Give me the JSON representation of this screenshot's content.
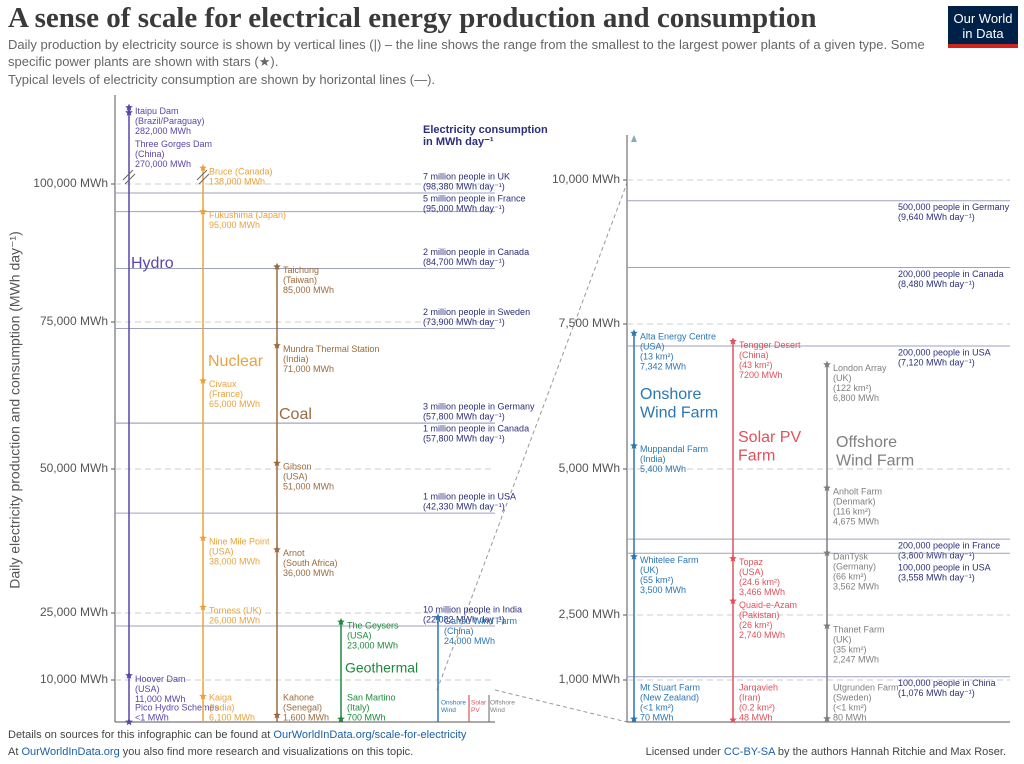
{
  "header": {
    "title": "A sense of scale for electrical energy production and consumption",
    "subtitle": [
      "Daily production by electricity source is shown by vertical lines (|) – the line shows the range from the smallest to the largest power plants of a given type. Some specific power plants are shown with stars (★).",
      "Typical levels of electricity consumption are shown by horizontal lines (—)."
    ],
    "logo": [
      "Our World",
      "in Data"
    ]
  },
  "chart_data": [
    {
      "type": "range-lines",
      "y_label": "Daily electricity production and consumption (MWh day⁻¹)",
      "ylim": [
        0,
        300000
      ],
      "yticks": [
        {
          "value": 10000,
          "label": "10,000 MWh"
        },
        {
          "value": 25000,
          "label": "25,000 MWh"
        },
        {
          "value": 50000,
          "label": "50,000 MWh"
        },
        {
          "value": 75000,
          "label": "75,000 MWh"
        },
        {
          "value": 100000,
          "label": "100,000 MWh"
        }
      ],
      "consumption_title": [
        "Electricity consumption",
        "in MWh day⁻¹"
      ],
      "consumption": [
        {
          "name": "7 million people in UK",
          "value": 98380,
          "value_label": "(98,380 MWh day⁻¹)"
        },
        {
          "name": "5 million people in France",
          "value": 95000,
          "value_label": "(95,000 MWh day⁻¹)"
        },
        {
          "name": "2 million people in Canada",
          "value": 84700,
          "value_label": "(84,700 MWh day⁻¹)"
        },
        {
          "name": "2 million people in Sweden",
          "value": 73900,
          "value_label": "(73,900 MWh day⁻¹)"
        },
        {
          "name": "3 million people in Germany",
          "value": 57800,
          "value_label": "(57,800 MWh day⁻¹)"
        },
        {
          "name": "1 million people in Canada",
          "value": 57800,
          "value_label": "(57,800 MWh day⁻¹)"
        },
        {
          "name": "1 million people in USA",
          "value": 42330,
          "value_label": "(42,330 MWh day⁻¹)"
        },
        {
          "name": "10 million people in India",
          "value": 22082,
          "value_label": "(22,082 MWh day⁻¹)"
        }
      ],
      "sources": [
        {
          "name": [
            "Hydro"
          ],
          "color": "#5b45a8",
          "plants": [
            {
              "name": "Itaipu Dam",
              "place": "(Brazil/Paraguay)",
              "value": 282000,
              "value_label": "282,000 MWh"
            },
            {
              "name": "Three Gorges Dam",
              "place": "(China)",
              "value": 270000,
              "value_label": "270,000 MWh"
            },
            {
              "name": "Hoover Dam",
              "place": "(USA)",
              "value": 11000,
              "value_label": "11,000 MWh"
            },
            {
              "name": "Pico Hydro Schemes",
              "value": 0.5,
              "value_label": "<1 MWh"
            }
          ]
        },
        {
          "name": [
            "Nuclear"
          ],
          "color": "#e8a33d",
          "plants": [
            {
              "name": "Bruce (Canada)",
              "value": 138000,
              "value_label": "138,000 MWh"
            },
            {
              "name": "Fukushima (Japan)",
              "value": 95000,
              "value_label": "95,000 MWh"
            },
            {
              "name": "Civaux",
              "place": "(France)",
              "value": 65000,
              "value_label": "65,000 MWh"
            },
            {
              "name": "Nine Mile Point",
              "place": "(USA)",
              "value": 38000,
              "value_label": "38,000 MWh"
            },
            {
              "name": "Torness (UK)",
              "value": 26000,
              "value_label": "26,000 MWh"
            },
            {
              "name": "Kaiga",
              "place": "(India)",
              "value": 6100,
              "value_label": "6,100 MWh"
            }
          ]
        },
        {
          "name": [
            "Coal"
          ],
          "color": "#9a6b3f",
          "plants": [
            {
              "name": "Taichung",
              "place": "(Taiwan)",
              "value": 85000,
              "value_label": "85,000 MWh"
            },
            {
              "name": "Mundra Thermal Station",
              "place": "(India)",
              "value": 71000,
              "value_label": "71,000 MWh"
            },
            {
              "name": "Gibson",
              "place": "(USA)",
              "value": 51000,
              "value_label": "51,000 MWh"
            },
            {
              "name": "Arnot",
              "place": "(South Africa)",
              "value": 36000,
              "value_label": "36,000 MWh"
            },
            {
              "name": "Kahone",
              "place": "(Senegal)",
              "value": 1600,
              "value_label": "1,600 MWh"
            }
          ]
        },
        {
          "name": [
            "Geothermal"
          ],
          "color": "#1e8a3c",
          "plants": [
            {
              "name": "The Geysers",
              "place": "(USA)",
              "value": 23000,
              "value_label": "23,000 MWh"
            },
            {
              "name": "San Martino",
              "place": "(Italy)",
              "value": 700,
              "value_label": "700 MWh"
            }
          ]
        },
        {
          "name": [
            "Onshore",
            "Wind"
          ],
          "color": "#2a77b5",
          "plants": [
            {
              "name": "Gansu Wind Farm",
              "place": "(China)",
              "value": 24000,
              "value_label": "24,000 MWh"
            }
          ]
        },
        {
          "name": [
            "Solar",
            "PV"
          ],
          "color": "#e0525a",
          "plants": []
        },
        {
          "name": [
            "Offshore",
            "Wind"
          ],
          "color": "#7f7f7f",
          "plants": []
        }
      ]
    },
    {
      "type": "range-lines",
      "ylim": [
        0,
        11000
      ],
      "yticks": [
        {
          "value": 1000,
          "label": "1,000 MWh"
        },
        {
          "value": 2500,
          "label": "2,500 MWh"
        },
        {
          "value": 5000,
          "label": "5,000 MWh"
        },
        {
          "value": 7500,
          "label": "7,500 MWh"
        },
        {
          "value": 10000,
          "label": "10,000 MWh"
        }
      ],
      "consumption": [
        {
          "name": "500,000 people in Germany",
          "value": 9640,
          "value_label": "(9,640 MWh day⁻¹)"
        },
        {
          "name": "200,000 people in Canada",
          "value": 8480,
          "value_label": "(8,480 MWh day⁻¹)"
        },
        {
          "name": "200,000 people in USA",
          "value": 7120,
          "value_label": "(7,120 MWh day⁻¹)"
        },
        {
          "name": "200,000 people in France",
          "value": 3800,
          "value_label": "(3,800 MWh day⁻¹)"
        },
        {
          "name": "100,000 people in USA",
          "value": 3558,
          "value_label": "(3,558 MWh day⁻¹)"
        },
        {
          "name": "100,000 people in China",
          "value": 1076,
          "value_label": "(1,076 MWh day⁻¹)"
        }
      ],
      "sources": [
        {
          "name": [
            "Onshore",
            "Wind Farm"
          ],
          "color": "#2a77b5",
          "plants": [
            {
              "name": "Alta Energy Centre",
              "place": "(USA)",
              "area": "(13 km²)",
              "value": 7342,
              "value_label": "7,342 MWh"
            },
            {
              "name": "Muppandal Farm",
              "place": "(India)",
              "value": 5400,
              "value_label": "5,400 MWh"
            },
            {
              "name": "Whitelee Farm",
              "place": "(UK)",
              "area": "(55 km²)",
              "value": 3500,
              "value_label": "3,500 MWh"
            },
            {
              "name": "Mt Stuart Farm",
              "place": "(New Zealand)",
              "area": "(<1 km²)",
              "value": 70,
              "value_label": "70 MWh"
            }
          ]
        },
        {
          "name": [
            "Solar PV",
            "Farm"
          ],
          "color": "#e0525a",
          "plants": [
            {
              "name": "Tengger Desert",
              "place": "(China)",
              "area": "(43 km²)",
              "value": 7200,
              "value_label": "7200 MWh"
            },
            {
              "name": "Topaz",
              "place": "(USA)",
              "area": "(24.6 km²)",
              "value": 3466,
              "value_label": "3,466 MWh"
            },
            {
              "name": "Quaid-e-Azam",
              "place": "(Pakistan)",
              "area": "(26 km²)",
              "value": 2740,
              "value_label": "2,740 MWh"
            },
            {
              "name": "Jarqavieh",
              "place": "(Iran)",
              "area": "(0.2 km²)",
              "value": 48,
              "value_label": "48 MWh"
            }
          ]
        },
        {
          "name": [
            "Offshore",
            "Wind Farm"
          ],
          "color": "#7f7f7f",
          "plants": [
            {
              "name": "London Array",
              "place": "(UK)",
              "area": "(122 km²)",
              "value": 6800,
              "value_label": "6,800 MWh"
            },
            {
              "name": "Anholt Farm",
              "place": "(Denmark)",
              "area": "(116 km²)",
              "value": 4675,
              "value_label": "4,675 MWh"
            },
            {
              "name": "DanTysk",
              "place": "(Germany)",
              "area": "(66 km²)",
              "value": 3562,
              "value_label": "3,562 MWh"
            },
            {
              "name": "Thanet Farm",
              "place": "(UK)",
              "area": "(35 km²)",
              "value": 2247,
              "value_label": "2,247 MWh"
            },
            {
              "name": "Utgrunden Farm",
              "place": "(Sweden)",
              "area": "(<1 km²)",
              "value": 80,
              "value_label": "80 MWh"
            }
          ]
        }
      ]
    }
  ],
  "footer": {
    "sources_text": "Details on sources for this infographic can be found at",
    "sources_link": "OurWorldInData.org/scale-for-electricity",
    "more_prefix": "At",
    "more_link": "OurWorldInData.org",
    "more_text": "you also find more research and visualizations on this topic.",
    "license_prefix": "Licensed under",
    "license_link": "CC-BY-SA",
    "license_text": "by the authors Hannah Ritchie and Max Roser."
  }
}
